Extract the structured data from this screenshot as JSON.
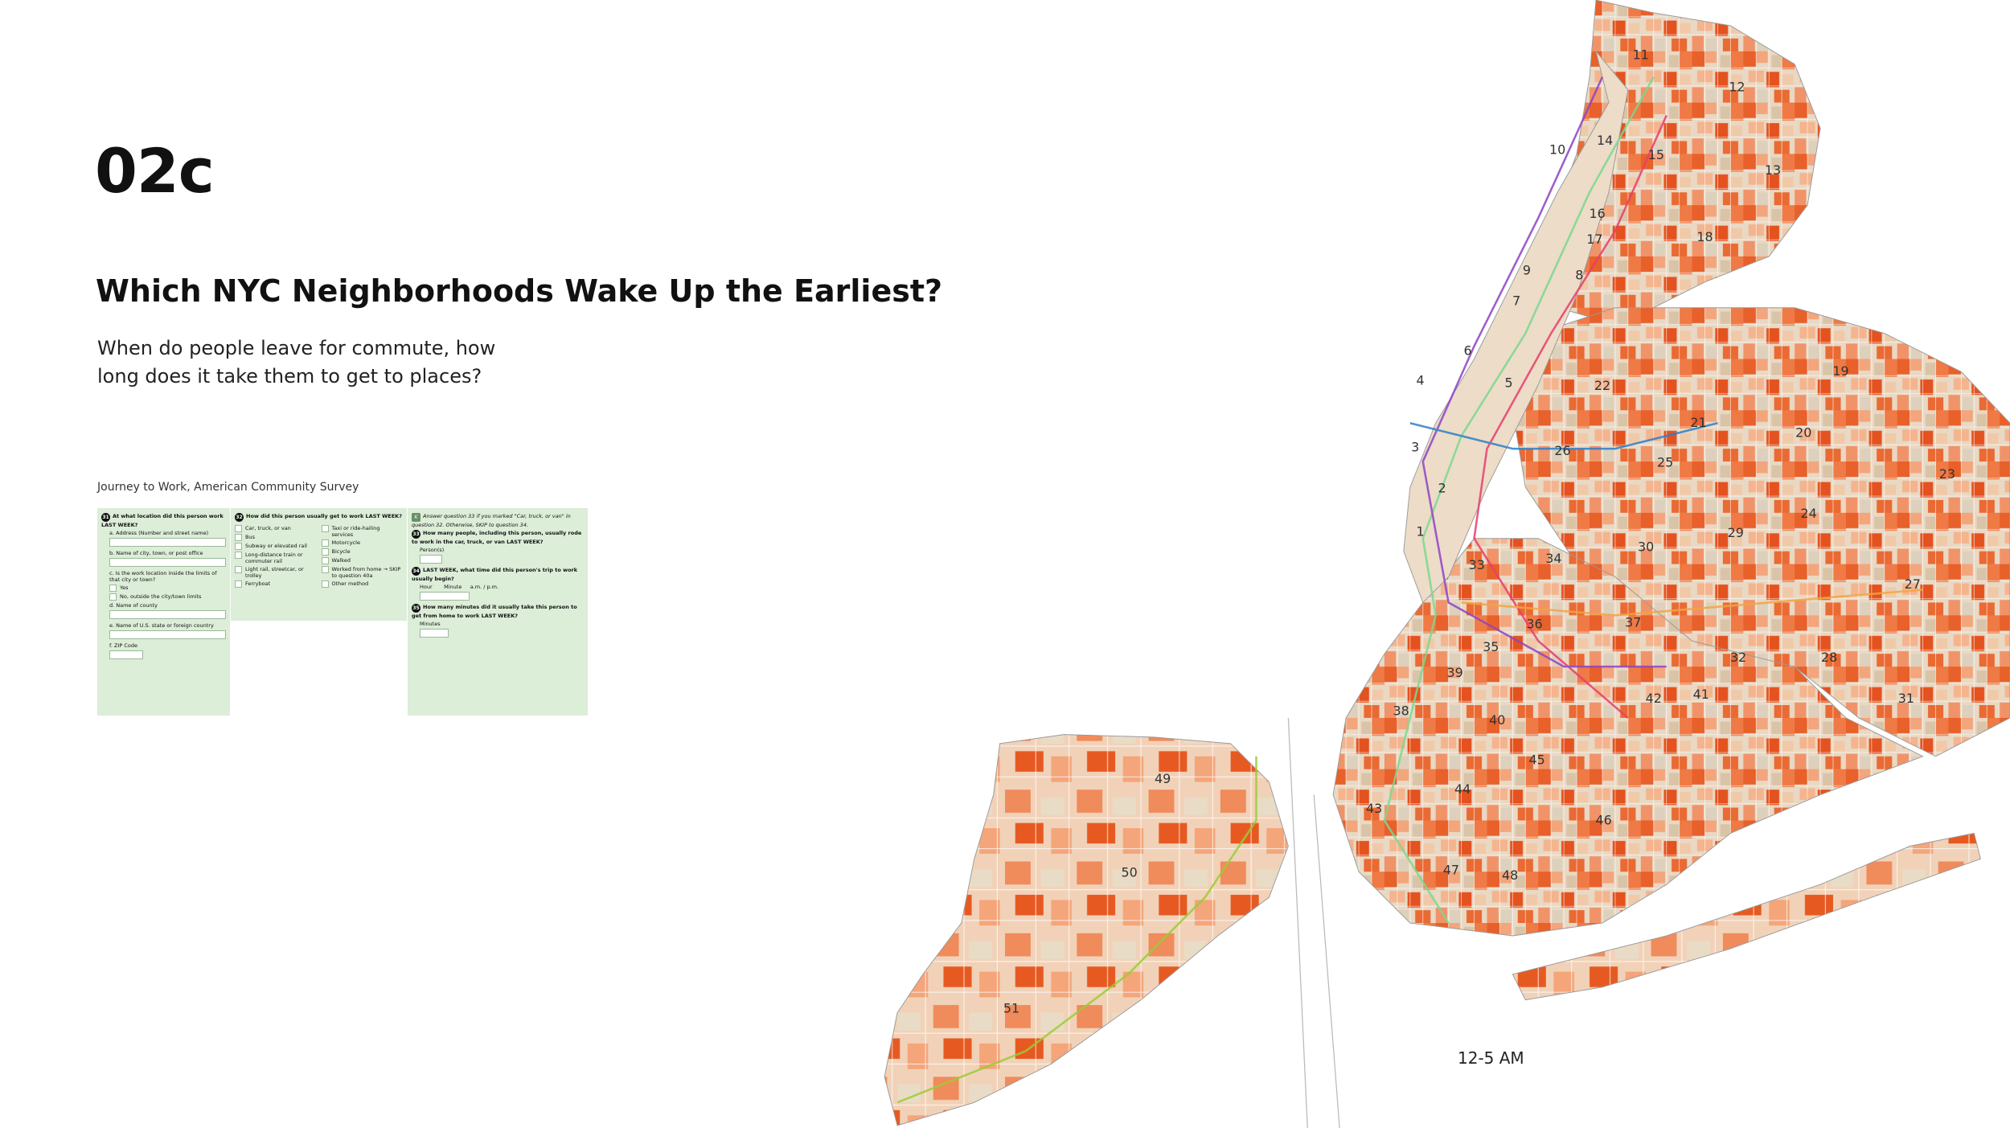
{
  "header": {
    "section": "02c",
    "title": "Which NYC Neighborhoods Wake Up the Earliest?",
    "subtitle": [
      "When do people leave for commute, how",
      "long does it take them to get to places?"
    ]
  },
  "figure_caption": "Journey to Work, American Community Survey",
  "form": {
    "q31": {
      "number": "31",
      "question": "At what location did this person work LAST WEEK?",
      "items": [
        "a. Address (Number and street name)",
        "b. Name of city, town, or post office",
        "c. Is the work location inside the limits of that city or town?",
        "Yes",
        "No, outside the city/town limits",
        "d. Name of county",
        "e. Name of U.S. state or foreign country",
        "f. ZIP Code"
      ]
    },
    "q32": {
      "number": "32",
      "question": "How did this person usually get to work LAST WEEK?",
      "options_left": [
        "Car, truck, or van",
        "Bus",
        "Subway or elevated rail",
        "Long-distance train or commuter rail",
        "Light rail, streetcar, or trolley",
        "Ferryboat"
      ],
      "options_right": [
        "Taxi or ride-hailing services",
        "Motorcycle",
        "Bicycle",
        "Walked",
        "Worked from home → SKIP to question 40a",
        "Other method"
      ]
    },
    "note": {
      "letter": "K",
      "text": "Answer question 33 if you marked \"Car, truck, or van\" in question 32. Otherwise, SKIP to question 34."
    },
    "q33": {
      "number": "33",
      "question": "How many people, including this person, usually rode to work in the car, truck, or van LAST WEEK?",
      "unit": "Person(s)"
    },
    "q34": {
      "number": "34",
      "question": "LAST WEEK, what time did this person's trip to work usually begin?",
      "hour": "Hour",
      "minute": "Minute",
      "am": "a.m.",
      "pm": "p.m."
    },
    "q35": {
      "number": "35",
      "question": "How many minutes did it usually take this person to get from home to work LAST WEEK?",
      "unit": "Minutes"
    }
  },
  "map": {
    "district_labels": [
      "11",
      "12",
      "10",
      "14",
      "15",
      "13",
      "16",
      "18",
      "9",
      "8",
      "7",
      "6",
      "5",
      "4",
      "22",
      "19",
      "21",
      "20",
      "3",
      "26",
      "25",
      "23",
      "2",
      "1",
      "24",
      "29",
      "30",
      "33",
      "34",
      "27",
      "36",
      "37",
      "35",
      "32",
      "28",
      "31",
      "39",
      "42",
      "41",
      "38",
      "40",
      "45",
      "49",
      "44",
      "43",
      "46",
      "50",
      "47",
      "48",
      "51",
      "17"
    ],
    "time_label": "12-5 AM"
  }
}
